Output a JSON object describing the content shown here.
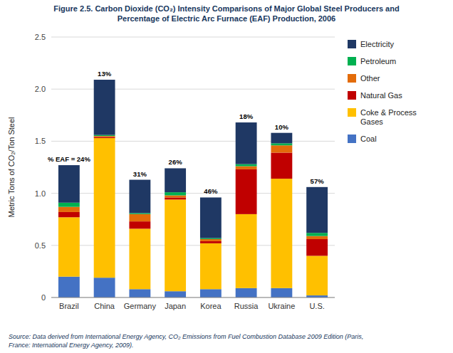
{
  "chart_data": {
    "type": "bar",
    "stacked": true,
    "title": "Figure 2.5. Carbon Dioxide (CO₂) Intensity Comparisons of Major Global Steel Producers and\nPercentage of Electric Arc Furnace (EAF) Production, 2006",
    "y_label": "Metric Tons of CO₂/Ton Steel",
    "categories": [
      "Brazil",
      "China",
      "Germany",
      "Japan",
      "Korea",
      "Russia",
      "Ukraine",
      "U.S."
    ],
    "series": [
      {
        "name": "Coal",
        "color": "#4472C4",
        "values": [
          0.2,
          0.19,
          0.08,
          0.06,
          0.08,
          0.09,
          0.09,
          0.02
        ]
      },
      {
        "name": "Coke & Process\nGases",
        "color": "#FFC000",
        "values": [
          0.57,
          1.34,
          0.58,
          0.88,
          0.44,
          0.71,
          1.05,
          0.38
        ]
      },
      {
        "name": "Natural Gas",
        "color": "#C00000",
        "values": [
          0.05,
          0.01,
          0.07,
          0.02,
          0.02,
          0.43,
          0.25,
          0.16
        ]
      },
      {
        "name": "Other",
        "color": "#E36C0A",
        "values": [
          0.05,
          0.01,
          0.07,
          0.02,
          0.02,
          0.03,
          0.07,
          0.03
        ]
      },
      {
        "name": "Petroleum",
        "color": "#00B050",
        "values": [
          0.04,
          0.01,
          0.01,
          0.03,
          0.01,
          0.02,
          0.02,
          0.03
        ]
      },
      {
        "name": "Electricity",
        "color": "#1F3864",
        "values": [
          0.36,
          0.53,
          0.32,
          0.23,
          0.39,
          0.4,
          0.1,
          0.44
        ]
      }
    ],
    "annotations": [
      "% EAF = 24%",
      "13%",
      "31%",
      "26%",
      "46%",
      "18%",
      "10%",
      "57%"
    ],
    "source": "Source: Data derived from International Energy Agency, CO₂ Emissions from Fuel Combustion Database 2009 Edition (Paris,\nFrance: International Energy Agency, 2009).",
    "ylim": [
      0,
      2.5
    ],
    "yticks": [
      0,
      0.5,
      {
        "value": 1.0,
        "label": "1.0"
      },
      1.5,
      {
        "value": 2.0,
        "label": "2.0"
      },
      2.5
    ],
    "grid": true,
    "legend": "right"
  }
}
